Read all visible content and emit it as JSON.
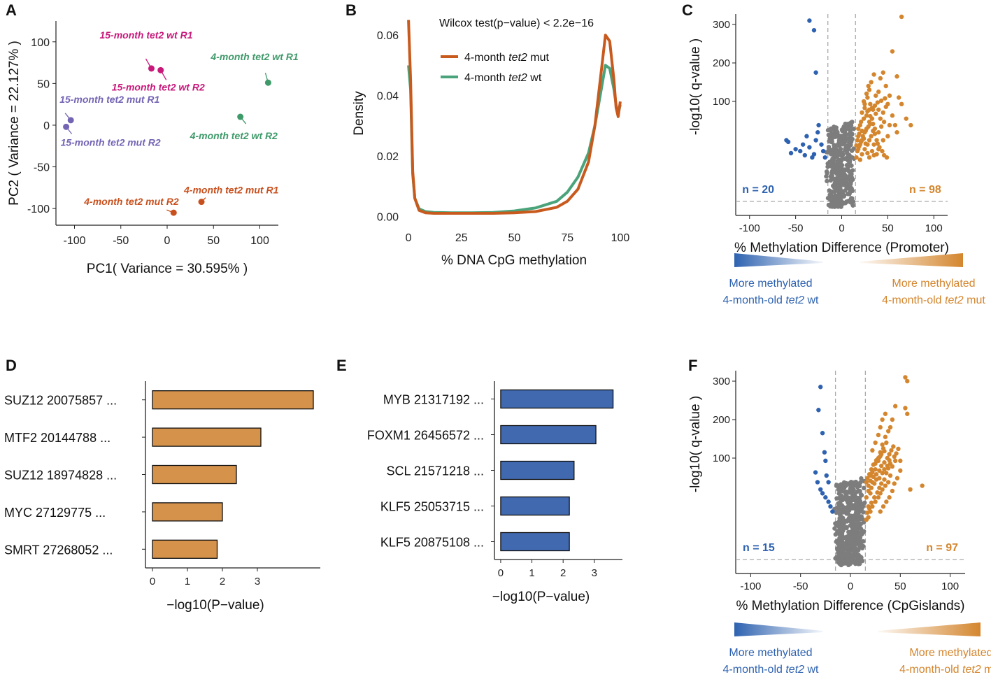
{
  "colors": {
    "mut_orange": "#c85a1e",
    "wt_green": "#4aa37a",
    "pca_magenta": "#c8187a",
    "pca_purple": "#7464b4",
    "pca_green": "#3f9a6a",
    "pca_orange": "#c8501e",
    "bar_orange": "#d4924a",
    "bar_blue": "#4169b0",
    "volcano_blue": "#2e62b0",
    "volcano_orange": "#d4862e",
    "volcano_grey": "#7d7d7d"
  },
  "chart_data": [
    {
      "panel": "A",
      "type": "scatter",
      "xlabel": "PC1( Variance = 30.595% )",
      "ylabel": "PC2 ( Variance = 22.127% )",
      "xlim": [
        -120,
        120
      ],
      "ylim": [
        -120,
        125
      ],
      "xticks": [
        -100,
        -50,
        0,
        50,
        100
      ],
      "yticks": [
        100,
        50,
        0,
        -50,
        -100
      ],
      "points": [
        {
          "label": "15-month tet2 wt R1",
          "x": -17,
          "y": 68,
          "group": "magenta"
        },
        {
          "label": "15-month tet2 wt R2",
          "x": -7,
          "y": 66,
          "group": "magenta"
        },
        {
          "label": "15-month tet2 mut R1",
          "x": -104,
          "y": 6,
          "group": "purple"
        },
        {
          "label": "15-month tet2 mut R2",
          "x": -109,
          "y": -2,
          "group": "purple"
        },
        {
          "label": "4-month tet2 wt R1",
          "x": 109,
          "y": 51,
          "group": "green"
        },
        {
          "label": "4-month tet2 wt R2",
          "x": 79,
          "y": 10,
          "group": "green"
        },
        {
          "label": "4-month tet2 mut R1",
          "x": 37,
          "y": -92,
          "group": "orange"
        },
        {
          "label": "4-month tet2 mut R2",
          "x": 7,
          "y": -105,
          "group": "orange"
        }
      ]
    },
    {
      "panel": "B",
      "type": "line",
      "xlabel": "% DNA CpG methylation",
      "ylabel": "Density",
      "annotation": "Wilcox test(p−value) < 2.2e−16",
      "xlim": [
        -2,
        102
      ],
      "ylim": [
        -0.002,
        0.067
      ],
      "xticks": [
        0,
        25,
        50,
        75,
        100
      ],
      "yticks": [
        0.06,
        0.04,
        0.02,
        0.0
      ],
      "ytick_labels": [
        "0.06",
        "0.04",
        "0.02",
        "0.00"
      ],
      "legend": [
        {
          "prefix": "4-month ",
          "italic": "tet2",
          "suffix": " mut",
          "color_key": "mut_orange"
        },
        {
          "prefix": "4-month ",
          "italic": "tet2",
          "suffix": " wt",
          "color_key": "wt_green"
        }
      ],
      "series": [
        {
          "name": "4-month tet2 mut",
          "x": [
            0,
            1,
            2,
            3,
            5,
            8,
            12,
            20,
            30,
            40,
            50,
            60,
            70,
            75,
            80,
            85,
            88,
            91,
            93,
            95,
            97,
            98,
            99,
            100
          ],
          "y": [
            0.065,
            0.045,
            0.015,
            0.006,
            0.002,
            0.0012,
            0.001,
            0.001,
            0.001,
            0.001,
            0.0012,
            0.0016,
            0.003,
            0.005,
            0.009,
            0.018,
            0.03,
            0.048,
            0.06,
            0.058,
            0.045,
            0.036,
            0.033,
            0.038
          ]
        },
        {
          "name": "4-month tet2 wt",
          "x": [
            0,
            1,
            2,
            3,
            5,
            8,
            12,
            20,
            30,
            40,
            50,
            60,
            70,
            75,
            80,
            85,
            88,
            91,
            93,
            95,
            97,
            98,
            99,
            100
          ],
          "y": [
            0.05,
            0.042,
            0.014,
            0.006,
            0.0025,
            0.0016,
            0.0013,
            0.0012,
            0.0012,
            0.0013,
            0.0018,
            0.0028,
            0.005,
            0.008,
            0.013,
            0.021,
            0.03,
            0.042,
            0.05,
            0.049,
            0.042,
            0.037,
            0.034,
            0.037
          ]
        }
      ]
    },
    {
      "panel": "C",
      "type": "scatter",
      "xlabel": "% Methylation Difference (Promoter)",
      "ylabel": "-log10( q-value )",
      "xticks": [
        -100,
        -50,
        0,
        50,
        100
      ],
      "yticks": [
        100,
        200,
        300
      ],
      "n_left": "n = 20",
      "n_right": "n = 98",
      "threshold_x": 15,
      "left_caption_line1": "More methylated",
      "left_caption_line2_prefix": "4-month-old ",
      "left_caption_line2_italic": "tet2",
      "left_caption_line2_suffix": " wt",
      "right_caption_line1": "More methylated",
      "right_caption_line2_prefix": "4-month-old ",
      "right_caption_line2_italic": "tet2",
      "right_caption_line2_suffix": " mut",
      "sig_up": [
        [
          18,
          45
        ],
        [
          20,
          60
        ],
        [
          22,
          80
        ],
        [
          25,
          95
        ],
        [
          28,
          110
        ],
        [
          30,
          130
        ],
        [
          32,
          150
        ],
        [
          35,
          170
        ],
        [
          40,
          125
        ],
        [
          42,
          160
        ],
        [
          45,
          175
        ],
        [
          48,
          140
        ],
        [
          50,
          95
        ],
        [
          52,
          115
        ],
        [
          55,
          230
        ],
        [
          60,
          165
        ],
        [
          62,
          110
        ],
        [
          65,
          95
        ],
        [
          70,
          70
        ],
        [
          75,
          60
        ],
        [
          18,
          30
        ],
        [
          20,
          35
        ],
        [
          22,
          40
        ],
        [
          25,
          50
        ],
        [
          27,
          55
        ],
        [
          30,
          65
        ],
        [
          33,
          70
        ],
        [
          36,
          55
        ],
        [
          38,
          40
        ],
        [
          40,
          50
        ],
        [
          42,
          70
        ],
        [
          45,
          80
        ],
        [
          48,
          90
        ],
        [
          55,
          75
        ],
        [
          58,
          60
        ],
        [
          20,
          20
        ],
        [
          22,
          25
        ],
        [
          25,
          30
        ],
        [
          28,
          35
        ],
        [
          30,
          40
        ],
        [
          32,
          45
        ],
        [
          35,
          35
        ],
        [
          38,
          25
        ],
        [
          40,
          30
        ],
        [
          45,
          40
        ],
        [
          50,
          45
        ],
        [
          24,
          100
        ],
        [
          27,
          120
        ],
        [
          29,
          140
        ],
        [
          31,
          95
        ],
        [
          34,
          85
        ],
        [
          37,
          115
        ],
        [
          16,
          22
        ],
        [
          17,
          28
        ],
        [
          19,
          33
        ],
        [
          21,
          38
        ],
        [
          23,
          45
        ],
        [
          26,
          52
        ],
        [
          29,
          58
        ],
        [
          31,
          62
        ],
        [
          34,
          52
        ],
        [
          36,
          48
        ],
        [
          39,
          36
        ],
        [
          41,
          32
        ],
        [
          44,
          28
        ],
        [
          46,
          24
        ],
        [
          49,
          22
        ],
        [
          18,
          55
        ],
        [
          21,
          65
        ],
        [
          24,
          70
        ],
        [
          27,
          75
        ],
        [
          30,
          85
        ],
        [
          33,
          88
        ],
        [
          36,
          92
        ],
        [
          39,
          98
        ],
        [
          43,
          102
        ],
        [
          47,
          108
        ],
        [
          65,
          320
        ],
        [
          30,
          22
        ],
        [
          33,
          28
        ],
        [
          35,
          24
        ],
        [
          28,
          26
        ],
        [
          26,
          36
        ],
        [
          24,
          42
        ],
        [
          22,
          52
        ],
        [
          19,
          48
        ],
        [
          17,
          40
        ],
        [
          16,
          34
        ],
        [
          60,
          50
        ],
        [
          52,
          60
        ],
        [
          46,
          65
        ],
        [
          43,
          58
        ],
        [
          40,
          85
        ],
        [
          37,
          78
        ],
        [
          34,
          62
        ],
        [
          31,
          74
        ],
        [
          28,
          82
        ],
        [
          25,
          88
        ]
      ],
      "sig_down": [
        [
          -60,
          40
        ],
        [
          -58,
          38
        ],
        [
          -55,
          26
        ],
        [
          -50,
          30
        ],
        [
          -45,
          28
        ],
        [
          -40,
          24
        ],
        [
          -35,
          32
        ],
        [
          -32,
          22
        ],
        [
          -30,
          25
        ],
        [
          -28,
          40
        ],
        [
          -26,
          50
        ],
        [
          -25,
          60
        ],
        [
          -22,
          35
        ],
        [
          -20,
          28
        ],
        [
          -18,
          22
        ],
        [
          -35,
          310
        ],
        [
          -30,
          285
        ],
        [
          -28,
          175
        ],
        [
          -38,
          45
        ],
        [
          -42,
          35
        ]
      ],
      "ns_xrange": [
        -17,
        15
      ],
      "ns_count": 420,
      "ylabel_gap": true
    },
    {
      "panel": "D",
      "type": "bar",
      "orientation": "horizontal",
      "xlabel": "−log10(P−value)",
      "xticks": [
        0,
        1,
        2,
        3
      ],
      "xlim": [
        -0.2,
        4.8
      ],
      "categories": [
        "SUZ12 20075857 ...",
        "MTF2 20144788 ...",
        "SUZ12 18974828 ...",
        "MYC 27129775  ...",
        "SMRT 27268052 ..."
      ],
      "values": [
        4.6,
        3.1,
        2.4,
        2.0,
        1.85
      ]
    },
    {
      "panel": "E",
      "type": "bar",
      "orientation": "horizontal",
      "xlabel": "−log10(P−value)",
      "xticks": [
        0,
        1,
        2,
        3
      ],
      "xlim": [
        -0.2,
        3.9
      ],
      "categories": [
        "MYB 21317192  ...",
        "FOXM1 26456572 ...",
        "SCL 21571218  ...",
        "KLF5 25053715 ...",
        "KLF5 20875108 ..."
      ],
      "values": [
        3.6,
        3.05,
        2.35,
        2.2,
        2.2
      ]
    },
    {
      "panel": "F",
      "type": "scatter",
      "xlabel": "% Methylation Difference (CpGislands)",
      "ylabel": "-log10( q-value )",
      "xticks": [
        -100,
        -50,
        0,
        50,
        100
      ],
      "yticks": [
        100,
        200,
        300
      ],
      "n_left": "n = 15",
      "n_right": "n = 97",
      "threshold_x": 15,
      "left_caption_line1": "More methylated",
      "left_caption_line2_prefix": "4-month-old ",
      "left_caption_line2_italic": "tet2",
      "left_caption_line2_suffix": " wt",
      "right_caption_line1": "More methylated",
      "right_caption_line2_prefix": "4-month-old ",
      "right_caption_line2_italic": "tet2",
      "right_caption_line2_suffix": " mut",
      "sig_up": [
        [
          18,
          30
        ],
        [
          20,
          45
        ],
        [
          22,
          60
        ],
        [
          25,
          80
        ],
        [
          28,
          100
        ],
        [
          30,
          115
        ],
        [
          32,
          135
        ],
        [
          35,
          155
        ],
        [
          38,
          170
        ],
        [
          40,
          180
        ],
        [
          42,
          200
        ],
        [
          45,
          235
        ],
        [
          55,
          230
        ],
        [
          57,
          215
        ],
        [
          55,
          310
        ],
        [
          57,
          300
        ],
        [
          60,
          50
        ],
        [
          72,
          55
        ],
        [
          22,
          120
        ],
        [
          25,
          140
        ],
        [
          28,
          160
        ],
        [
          30,
          180
        ],
        [
          32,
          200
        ],
        [
          35,
          215
        ],
        [
          18,
          20
        ],
        [
          20,
          25
        ],
        [
          22,
          30
        ],
        [
          25,
          35
        ],
        [
          28,
          40
        ],
        [
          30,
          45
        ],
        [
          32,
          50
        ],
        [
          35,
          55
        ],
        [
          38,
          60
        ],
        [
          40,
          70
        ],
        [
          42,
          85
        ],
        [
          45,
          95
        ],
        [
          20,
          70
        ],
        [
          22,
          75
        ],
        [
          25,
          90
        ],
        [
          28,
          95
        ],
        [
          30,
          105
        ],
        [
          33,
          125
        ],
        [
          36,
          140
        ],
        [
          18,
          55
        ],
        [
          20,
          62
        ],
        [
          23,
          68
        ],
        [
          26,
          72
        ],
        [
          29,
          78
        ],
        [
          31,
          86
        ],
        [
          34,
          92
        ],
        [
          37,
          100
        ],
        [
          39,
          110
        ],
        [
          41,
          120
        ],
        [
          43,
          130
        ],
        [
          16,
          18
        ],
        [
          17,
          24
        ],
        [
          19,
          28
        ],
        [
          21,
          34
        ],
        [
          24,
          40
        ],
        [
          27,
          46
        ],
        [
          29,
          52
        ],
        [
          31,
          58
        ],
        [
          34,
          64
        ],
        [
          36,
          74
        ],
        [
          38,
          82
        ],
        [
          40,
          90
        ],
        [
          44,
          104
        ],
        [
          46,
          112
        ],
        [
          48,
          124
        ],
        [
          50,
          95
        ],
        [
          16,
          40
        ],
        [
          18,
          48
        ],
        [
          21,
          52
        ],
        [
          24,
          58
        ],
        [
          26,
          64
        ],
        [
          29,
          66
        ],
        [
          32,
          74
        ],
        [
          34,
          80
        ],
        [
          37,
          86
        ],
        [
          39,
          96
        ],
        [
          16,
          60
        ],
        [
          17,
          66
        ],
        [
          19,
          72
        ],
        [
          21,
          80
        ],
        [
          23,
          88
        ],
        [
          26,
          96
        ],
        [
          29,
          102
        ],
        [
          31,
          110
        ],
        [
          34,
          118
        ],
        [
          30,
          25
        ],
        [
          33,
          30
        ],
        [
          36,
          35
        ],
        [
          39,
          40
        ],
        [
          42,
          48
        ],
        [
          44,
          58
        ],
        [
          47,
          66
        ],
        [
          50,
          78
        ]
      ],
      "sig_down": [
        [
          -30,
          285
        ],
        [
          -32,
          225
        ],
        [
          -28,
          165
        ],
        [
          -26,
          115
        ],
        [
          -25,
          95
        ],
        [
          -24,
          70
        ],
        [
          -22,
          60
        ],
        [
          -30,
          50
        ],
        [
          -28,
          45
        ],
        [
          -25,
          40
        ],
        [
          -22,
          35
        ],
        [
          -20,
          30
        ],
        [
          -18,
          25
        ],
        [
          -35,
          75
        ],
        [
          -33,
          60
        ]
      ],
      "ns_xrange": [
        -17,
        15
      ],
      "ns_count": 480,
      "ylabel_gap": true
    }
  ],
  "panel_labels": {
    "a": "A",
    "b": "B",
    "c": "C",
    "d": "D",
    "e": "E",
    "f": "F"
  }
}
